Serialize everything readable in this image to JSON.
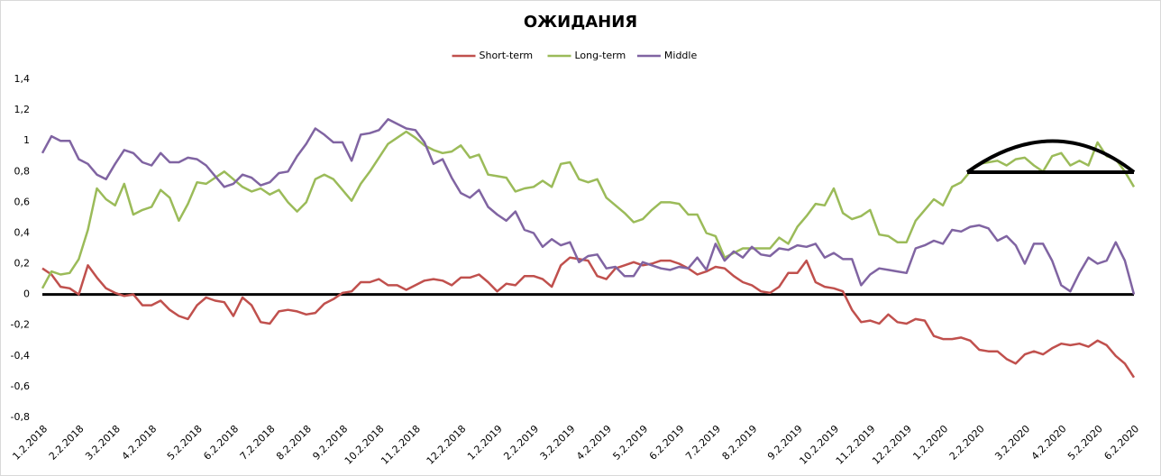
{
  "chart_data": {
    "type": "line",
    "title": "ОЖИДАНИЯ",
    "categories": [
      "1.2.2018",
      null,
      null,
      null,
      "2.2.2018",
      null,
      null,
      null,
      "3.2.2018",
      null,
      null,
      null,
      "4.2.2018",
      null,
      null,
      null,
      null,
      "5.2.2018",
      null,
      null,
      null,
      "6.2.2018",
      null,
      null,
      null,
      "7.2.2018",
      null,
      null,
      null,
      "8.2.2018",
      null,
      null,
      null,
      "9.2.2018",
      null,
      null,
      null,
      "10.2.2018",
      null,
      null,
      null,
      "11.2.2018",
      null,
      null,
      null,
      null,
      "12.2.2018",
      null,
      null,
      null,
      "1.2.2019",
      null,
      null,
      null,
      "2.2.2019",
      null,
      null,
      null,
      "3.2.2019",
      null,
      null,
      null,
      "4.2.2019",
      null,
      null,
      null,
      "5.2.2019",
      null,
      null,
      null,
      "6.2.2019",
      null,
      null,
      null,
      "7.2.2019",
      null,
      null,
      null,
      "8.2.2019",
      null,
      null,
      null,
      null,
      "9.2.2019",
      null,
      null,
      null,
      "10.2.2019",
      null,
      null,
      null,
      "11.2.2019",
      null,
      null,
      null,
      "12.2.2019",
      null,
      null,
      null,
      "1.2.2020",
      null,
      null,
      null,
      "2.2.2020",
      null,
      null,
      null,
      null,
      "3.2.2020",
      null,
      null,
      null,
      "4.2.2020",
      null,
      null,
      null,
      "5.2.2020",
      null,
      null,
      null,
      "6.2.2020"
    ],
    "series": [
      {
        "name": "Short-term",
        "color": "#c0504d",
        "values": [
          0.17,
          0.13,
          0.05,
          0.04,
          0.0,
          0.19,
          0.11,
          0.04,
          0.01,
          -0.01,
          0.0,
          -0.07,
          -0.07,
          -0.04,
          -0.1,
          -0.14,
          -0.16,
          -0.07,
          -0.02,
          -0.04,
          -0.05,
          -0.14,
          -0.02,
          -0.07,
          -0.18,
          -0.19,
          -0.11,
          -0.1,
          -0.11,
          -0.13,
          -0.12,
          -0.06,
          -0.03,
          0.01,
          0.02,
          0.08,
          0.08,
          0.1,
          0.06,
          0.06,
          0.03,
          0.06,
          0.09,
          0.1,
          0.09,
          0.06,
          0.11,
          0.11,
          0.13,
          0.08,
          0.02,
          0.07,
          0.06,
          0.12,
          0.12,
          0.1,
          0.05,
          0.19,
          0.24,
          0.23,
          0.22,
          0.12,
          0.1,
          0.17,
          0.19,
          0.21,
          0.19,
          0.2,
          0.22,
          0.22,
          0.2,
          0.17,
          0.13,
          0.15,
          0.18,
          0.17,
          0.12,
          0.08,
          0.06,
          0.02,
          0.01,
          0.05,
          0.14,
          0.14,
          0.22,
          0.08,
          0.05,
          0.04,
          0.02,
          -0.1,
          -0.18,
          -0.17,
          -0.19,
          -0.13,
          -0.18,
          -0.19,
          -0.16,
          -0.17,
          -0.27,
          -0.29,
          -0.29,
          -0.28,
          -0.3,
          -0.36,
          -0.37,
          -0.37,
          -0.42,
          -0.45,
          -0.39,
          -0.37,
          -0.39,
          -0.35,
          -0.32,
          -0.33,
          -0.32,
          -0.34,
          -0.3,
          -0.33,
          -0.4,
          -0.45,
          -0.54
        ]
      },
      {
        "name": "Long-term",
        "color": "#9bbb59",
        "values": [
          0.04,
          0.15,
          0.13,
          0.14,
          0.23,
          0.42,
          0.69,
          0.62,
          0.58,
          0.72,
          0.52,
          0.55,
          0.57,
          0.68,
          0.63,
          0.48,
          0.59,
          0.73,
          0.72,
          0.76,
          0.8,
          0.75,
          0.7,
          0.67,
          0.69,
          0.65,
          0.68,
          0.6,
          0.54,
          0.6,
          0.75,
          0.78,
          0.75,
          0.68,
          0.61,
          0.72,
          0.8,
          0.89,
          0.98,
          1.02,
          1.06,
          1.02,
          0.97,
          0.94,
          0.92,
          0.93,
          0.97,
          0.89,
          0.91,
          0.78,
          0.77,
          0.76,
          0.67,
          0.69,
          0.7,
          0.74,
          0.7,
          0.85,
          0.86,
          0.75,
          0.73,
          0.75,
          0.63,
          0.58,
          0.53,
          0.47,
          0.49,
          0.55,
          0.6,
          0.6,
          0.59,
          0.52,
          0.52,
          0.4,
          0.38,
          0.24,
          0.27,
          0.3,
          0.3,
          0.3,
          0.3,
          0.37,
          0.33,
          0.44,
          0.51,
          0.59,
          0.58,
          0.69,
          0.53,
          0.49,
          0.51,
          0.55,
          0.39,
          0.38,
          0.34,
          0.34,
          0.48,
          0.55,
          0.62,
          0.58,
          0.7,
          0.73,
          0.8,
          0.85,
          0.86,
          0.87,
          0.84,
          0.88,
          0.89,
          0.84,
          0.8,
          0.9,
          0.92,
          0.84,
          0.87,
          0.84,
          0.99,
          0.9,
          0.88,
          0.8,
          0.7
        ]
      },
      {
        "name": "Middle",
        "color": "#8064a2",
        "values": [
          0.92,
          1.03,
          1.0,
          1.0,
          0.88,
          0.85,
          0.78,
          0.75,
          0.85,
          0.94,
          0.92,
          0.86,
          0.84,
          0.92,
          0.86,
          0.86,
          0.89,
          0.88,
          0.84,
          0.77,
          0.7,
          0.72,
          0.78,
          0.76,
          0.71,
          0.73,
          0.79,
          0.8,
          0.9,
          0.98,
          1.08,
          1.04,
          0.99,
          0.99,
          0.87,
          1.04,
          1.05,
          1.07,
          1.14,
          1.11,
          1.08,
          1.07,
          0.99,
          0.85,
          0.88,
          0.76,
          0.66,
          0.63,
          0.68,
          0.57,
          0.52,
          0.48,
          0.54,
          0.42,
          0.4,
          0.31,
          0.36,
          0.32,
          0.34,
          0.21,
          0.25,
          0.26,
          0.17,
          0.18,
          0.12,
          0.12,
          0.21,
          0.19,
          0.17,
          0.16,
          0.18,
          0.17,
          0.24,
          0.16,
          0.33,
          0.22,
          0.28,
          0.24,
          0.31,
          0.26,
          0.25,
          0.3,
          0.29,
          0.32,
          0.31,
          0.33,
          0.24,
          0.27,
          0.23,
          0.23,
          0.06,
          0.13,
          0.17,
          0.16,
          0.15,
          0.14,
          0.3,
          0.32,
          0.35,
          0.33,
          0.42,
          0.41,
          0.44,
          0.45,
          0.43,
          0.35,
          0.38,
          0.32,
          0.2,
          0.33,
          0.33,
          0.22,
          0.06,
          0.02,
          0.14,
          0.24,
          0.2,
          0.22,
          0.34,
          0.22,
          0.0
        ]
      }
    ],
    "ylim": [
      -0.8,
      1.4
    ],
    "yticks": [
      {
        "value": -0.8,
        "label": "-0,8"
      },
      {
        "value": -0.6,
        "label": "-0,6"
      },
      {
        "value": -0.4,
        "label": "-0,4"
      },
      {
        "value": -0.2,
        "label": "-0,2"
      },
      0,
      {
        "value": 0.2,
        "label": "0,2"
      },
      {
        "value": 0.4,
        "label": "0,4"
      },
      {
        "value": 0.6,
        "label": "0,6"
      },
      {
        "value": 0.8,
        "label": "0,8"
      },
      1,
      {
        "value": 1.2,
        "label": "1,2"
      },
      {
        "value": 1.4,
        "label": "1,4"
      }
    ],
    "grid": false,
    "legend": "top"
  }
}
